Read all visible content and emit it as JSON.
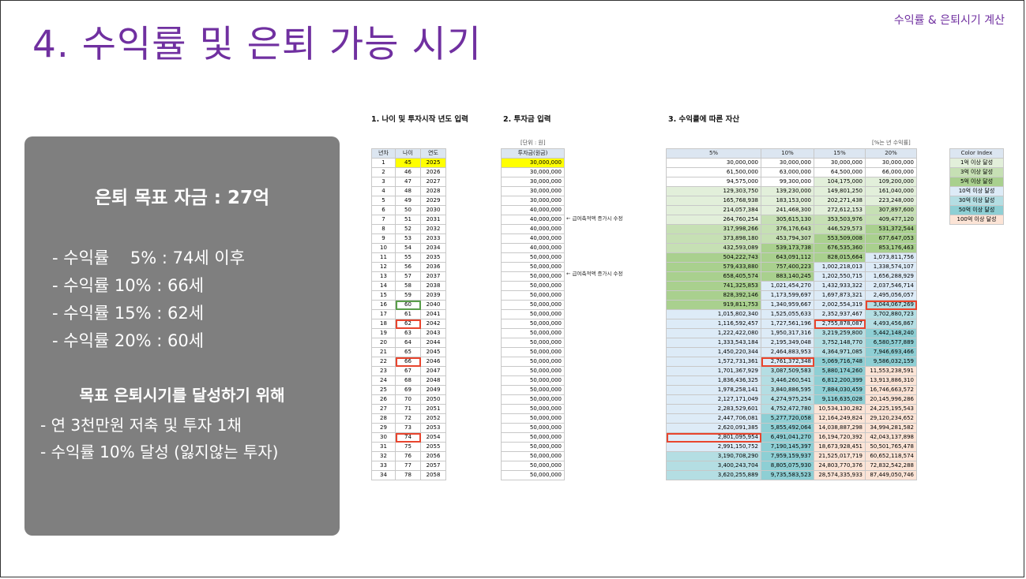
{
  "header": {
    "top_right": "수익률 & 은퇴시기 계산",
    "title": "4. 수익률 및 은퇴 가능 시기"
  },
  "summary": {
    "goal": "은퇴 목표 자금 : 27억",
    "returns": [
      "- 수익률    5% : 74세 이후",
      "- 수익률 10% : 66세",
      "- 수익률 15% : 62세",
      "- 수익률 20% : 60세"
    ],
    "subtitle": "목표 은퇴시기를 달성하기 위해",
    "plans": [
      "- 연 3천만원 저축 및 투자 1채",
      "- 수익률 10% 달성 (잃지않는 투자)"
    ]
  },
  "sections": {
    "s1": "1. 나이 및 투자시작 년도 입력",
    "s2": "2. 투자금 입력",
    "s3": "3. 수익률에 따른 자산"
  },
  "units": {
    "won": "[단위 : 원]",
    "pct": "[%는 년 수익률]"
  },
  "notes": [
    "← 급여축적액 증가시 수정",
    "← 급여축적액 증가시 수정"
  ],
  "colors": {
    "c1": "#e2efda",
    "c3": "#c6e0b4",
    "c5": "#a9d08e",
    "c10": "#ddebf7",
    "c30": "#b4dee3",
    "c50": "#8ecfd4",
    "c100": "#fce4d6",
    "highlight": "#e8452e",
    "title": "#7030a0"
  },
  "color_index": {
    "header": "Color Index",
    "items": [
      {
        "label": "1억 이상 달성",
        "color": "#e2efda"
      },
      {
        "label": "3억 이상 달성",
        "color": "#c6e0b4"
      },
      {
        "label": "5억 이상 달성",
        "color": "#a9d08e"
      },
      {
        "label": "10억 이상 달성",
        "color": "#ddebf7"
      },
      {
        "label": "30억 이상 달성",
        "color": "#b4dee3"
      },
      {
        "label": "50억 이상 달성",
        "color": "#8ecfd4"
      },
      {
        "label": "100억 이상 달성",
        "color": "#fce4d6"
      }
    ]
  },
  "table": {
    "h1": [
      "년차",
      "나이",
      "연도"
    ],
    "h2": "투자금(원금)",
    "h3": [
      "5%",
      "10%",
      "15%",
      "20%"
    ],
    "rows": [
      [
        "1",
        "45",
        "2025",
        "30,000,000",
        "30,000,000",
        "30,000,000",
        "30,000,000",
        "30,000,000"
      ],
      [
        "2",
        "46",
        "2026",
        "30,000,000",
        "61,500,000",
        "63,000,000",
        "64,500,000",
        "66,000,000"
      ],
      [
        "3",
        "47",
        "2027",
        "30,000,000",
        "94,575,000",
        "99,300,000",
        "104,175,000",
        "109,200,000"
      ],
      [
        "4",
        "48",
        "2028",
        "30,000,000",
        "129,303,750",
        "139,230,000",
        "149,801,250",
        "161,040,000"
      ],
      [
        "5",
        "49",
        "2029",
        "30,000,000",
        "165,768,938",
        "183,153,000",
        "202,271,438",
        "223,248,000"
      ],
      [
        "6",
        "50",
        "2030",
        "40,000,000",
        "214,057,384",
        "241,468,300",
        "272,612,153",
        "307,897,600"
      ],
      [
        "7",
        "51",
        "2031",
        "40,000,000",
        "264,760,254",
        "305,615,130",
        "353,503,976",
        "409,477,120"
      ],
      [
        "8",
        "52",
        "2032",
        "40,000,000",
        "317,998,266",
        "376,176,643",
        "446,529,573",
        "531,372,544"
      ],
      [
        "9",
        "53",
        "2033",
        "40,000,000",
        "373,898,180",
        "453,794,307",
        "553,509,008",
        "677,647,053"
      ],
      [
        "10",
        "54",
        "2034",
        "40,000,000",
        "432,593,089",
        "539,173,738",
        "676,535,360",
        "853,176,463"
      ],
      [
        "11",
        "55",
        "2035",
        "50,000,000",
        "504,222,743",
        "643,091,112",
        "828,015,664",
        "1,073,811,756"
      ],
      [
        "12",
        "56",
        "2036",
        "50,000,000",
        "579,433,880",
        "757,400,223",
        "1,002,218,013",
        "1,338,574,107"
      ],
      [
        "13",
        "57",
        "2037",
        "50,000,000",
        "658,405,574",
        "883,140,245",
        "1,202,550,715",
        "1,656,288,929"
      ],
      [
        "14",
        "58",
        "2038",
        "50,000,000",
        "741,325,853",
        "1,021,454,270",
        "1,432,933,322",
        "2,037,546,714"
      ],
      [
        "15",
        "59",
        "2039",
        "50,000,000",
        "828,392,146",
        "1,173,599,697",
        "1,697,873,321",
        "2,495,056,057"
      ],
      [
        "16",
        "60",
        "2040",
        "50,000,000",
        "919,811,753",
        "1,340,959,667",
        "2,002,554,319",
        "3,044,067,269"
      ],
      [
        "17",
        "61",
        "2041",
        "50,000,000",
        "1,015,802,340",
        "1,525,055,633",
        "2,352,937,467",
        "3,702,880,723"
      ],
      [
        "18",
        "62",
        "2042",
        "50,000,000",
        "1,116,592,457",
        "1,727,561,196",
        "2,755,878,087",
        "4,493,456,867"
      ],
      [
        "19",
        "63",
        "2043",
        "50,000,000",
        "1,222,422,080",
        "1,950,317,316",
        "3,219,259,800",
        "5,442,148,240"
      ],
      [
        "20",
        "64",
        "2044",
        "50,000,000",
        "1,333,543,184",
        "2,195,349,048",
        "3,752,148,770",
        "6,580,577,889"
      ],
      [
        "21",
        "65",
        "2045",
        "50,000,000",
        "1,450,220,344",
        "2,464,883,953",
        "4,364,971,085",
        "7,946,693,466"
      ],
      [
        "22",
        "66",
        "2046",
        "50,000,000",
        "1,572,731,361",
        "2,761,372,348",
        "5,069,716,748",
        "9,586,032,159"
      ],
      [
        "23",
        "67",
        "2047",
        "50,000,000",
        "1,701,367,929",
        "3,087,509,583",
        "5,880,174,260",
        "11,553,238,591"
      ],
      [
        "24",
        "68",
        "2048",
        "50,000,000",
        "1,836,436,325",
        "3,446,260,541",
        "6,812,200,399",
        "13,913,886,310"
      ],
      [
        "25",
        "69",
        "2049",
        "50,000,000",
        "1,978,258,141",
        "3,840,886,595",
        "7,884,030,459",
        "16,746,663,572"
      ],
      [
        "26",
        "70",
        "2050",
        "50,000,000",
        "2,127,171,049",
        "4,274,975,254",
        "9,116,635,028",
        "20,145,996,286"
      ],
      [
        "27",
        "71",
        "2051",
        "50,000,000",
        "2,283,529,601",
        "4,752,472,780",
        "10,534,130,282",
        "24,225,195,543"
      ],
      [
        "28",
        "72",
        "2052",
        "50,000,000",
        "2,447,706,081",
        "5,277,720,058",
        "12,164,249,824",
        "29,120,234,652"
      ],
      [
        "29",
        "73",
        "2053",
        "50,000,000",
        "2,620,091,385",
        "5,855,492,064",
        "14,038,887,298",
        "34,994,281,582"
      ],
      [
        "30",
        "74",
        "2054",
        "50,000,000",
        "2,801,095,954",
        "6,491,041,270",
        "16,194,720,392",
        "42,043,137,898"
      ],
      [
        "31",
        "75",
        "2055",
        "50,000,000",
        "2,991,150,752",
        "7,190,145,397",
        "18,673,928,451",
        "50,501,765,478"
      ],
      [
        "32",
        "76",
        "2056",
        "50,000,000",
        "3,190,708,290",
        "7,959,159,937",
        "21,525,017,719",
        "60,652,118,574"
      ],
      [
        "33",
        "77",
        "2057",
        "50,000,000",
        "3,400,243,704",
        "8,805,075,930",
        "24,803,770,376",
        "72,832,542,288"
      ],
      [
        "34",
        "78",
        "2058",
        "50,000,000",
        "3,620,255,889",
        "9,735,583,523",
        "28,574,335,933",
        "87,449,050,746"
      ]
    ]
  }
}
